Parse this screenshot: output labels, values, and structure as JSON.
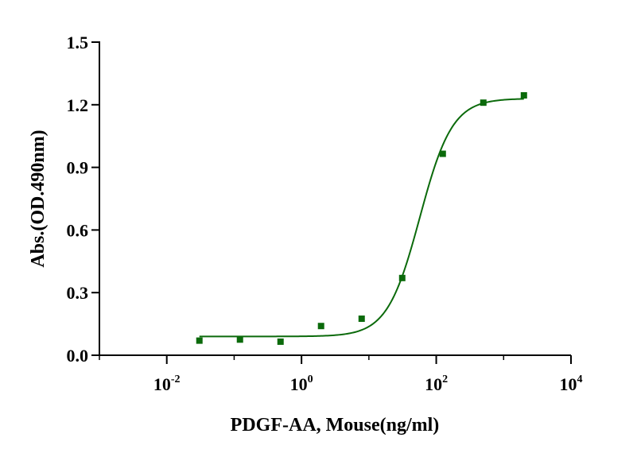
{
  "chart_data": {
    "type": "scatter",
    "xlabel": "PDGF-AA, Mouse(ng/ml)",
    "ylabel": "Abs.(OD.490nm)",
    "x_scale": "log10",
    "xlim": [
      0.001,
      10000
    ],
    "ylim": [
      0,
      1.5
    ],
    "x_ticks": [
      {
        "base": "10",
        "exp": "-2",
        "value": 0.01
      },
      {
        "base": "10",
        "exp": "0",
        "value": 1
      },
      {
        "base": "10",
        "exp": "2",
        "value": 100
      },
      {
        "base": "10",
        "exp": "4",
        "value": 10000
      }
    ],
    "y_ticks": [
      {
        "label": "0.0",
        "value": 0
      },
      {
        "label": "0.3",
        "value": 0.3
      },
      {
        "label": "0.6",
        "value": 0.6
      },
      {
        "label": "0.9",
        "value": 0.9
      },
      {
        "label": "1.2",
        "value": 1.2
      },
      {
        "label": "1.5",
        "value": 1.5
      }
    ],
    "series": [
      {
        "color": "#0b6a0b",
        "marker": "square",
        "x": [
          0.0305,
          0.122,
          0.488,
          1.95,
          7.81,
          31.25,
          125,
          500,
          2000
        ],
        "y": [
          0.07,
          0.075,
          0.065,
          0.14,
          0.175,
          0.37,
          0.965,
          1.21,
          1.245
        ]
      }
    ],
    "fit_curve": {
      "model": "4PL",
      "bottom": 0.09,
      "top": 1.23,
      "ec50": 57,
      "hill": 1.8
    },
    "grid": false
  }
}
